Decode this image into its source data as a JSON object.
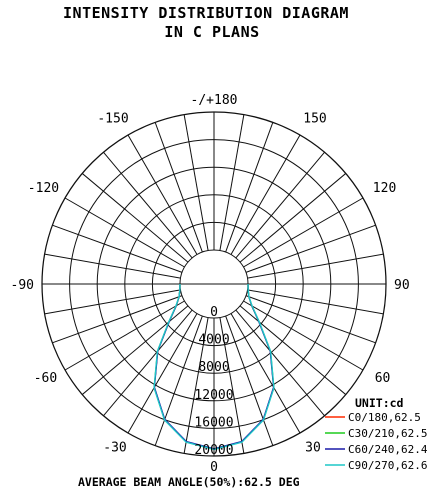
{
  "title": {
    "line1": "INTENSITY DISTRIBUTION DIAGRAM",
    "line2": "IN C PLANS"
  },
  "unit_label": "UNIT:cd",
  "footer": "AVERAGE BEAM ANGLE(50%):62.5 DEG",
  "chart_data": {
    "type": "polar",
    "angle_labels": [
      {
        "angle": 180,
        "text": "-/+180"
      },
      {
        "angle": -150,
        "text": "-150"
      },
      {
        "angle": 150,
        "text": "150"
      },
      {
        "angle": -120,
        "text": "-120"
      },
      {
        "angle": 120,
        "text": "120"
      },
      {
        "angle": -90,
        "text": "-90"
      },
      {
        "angle": 90,
        "text": "90"
      },
      {
        "angle": -60,
        "text": "-60"
      },
      {
        "angle": 60,
        "text": "60"
      },
      {
        "angle": -30,
        "text": "-30"
      },
      {
        "angle": 30,
        "text": "30"
      },
      {
        "angle": 0,
        "text": "0"
      }
    ],
    "radial_labels": [
      "0",
      "4000",
      "8000",
      "12000",
      "16000",
      "20000"
    ],
    "rmax": 20000,
    "grid": true,
    "legend_position": "bottom-right",
    "series": [
      {
        "name": "C0/180,62.5",
        "color": "#ff2a00",
        "angles": [
          0,
          10,
          20,
          30,
          40,
          50,
          60,
          70,
          80,
          90
        ],
        "values": [
          19000,
          18300,
          16000,
          12400,
          7800,
          3600,
          1400,
          450,
          100,
          0
        ]
      },
      {
        "name": "C30/210,62.5",
        "color": "#1fcc1f",
        "angles": [
          0,
          10,
          20,
          30,
          40,
          50,
          60,
          70,
          80,
          90
        ],
        "values": [
          19000,
          18300,
          16000,
          12400,
          7800,
          3600,
          1400,
          450,
          100,
          0
        ]
      },
      {
        "name": "C60/240,62.4",
        "color": "#1a1aa8",
        "angles": [
          0,
          10,
          20,
          30,
          40,
          50,
          60,
          70,
          80,
          90
        ],
        "values": [
          18950,
          18250,
          15950,
          12350,
          7750,
          3550,
          1400,
          450,
          100,
          0
        ]
      },
      {
        "name": "C90/270,62.6",
        "color": "#1ec7c7",
        "angles": [
          0,
          10,
          20,
          30,
          40,
          50,
          60,
          70,
          80,
          90
        ],
        "values": [
          19050,
          18350,
          16050,
          12450,
          7850,
          3650,
          1450,
          460,
          100,
          0
        ]
      }
    ]
  }
}
